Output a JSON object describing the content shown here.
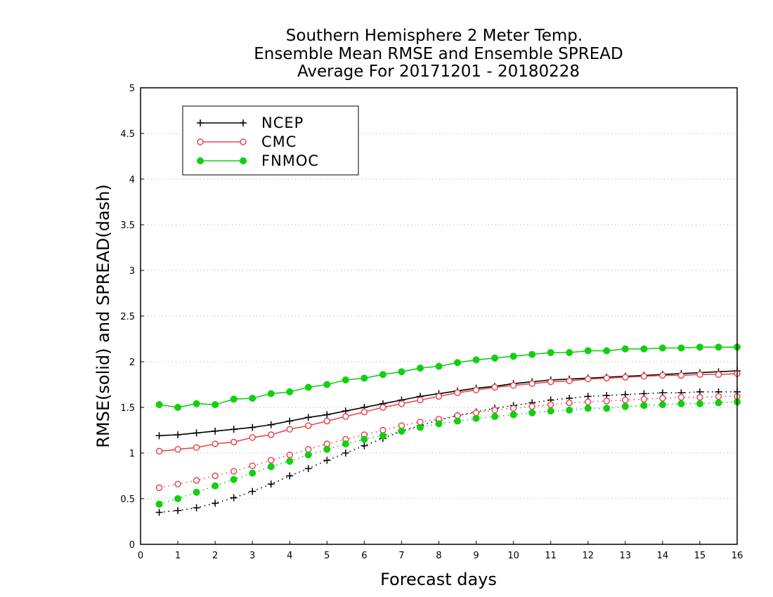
{
  "chart_data": {
    "type": "line",
    "title_lines": [
      "Southern Hemisphere 2 Meter Temp.",
      "Ensemble Mean RMSE and Ensemble SPREAD",
      "Average For 20171201 - 20180228"
    ],
    "xlabel": "Forecast days",
    "ylabel": "RMSE(solid) and SPREAD(dash)",
    "xlim": [
      0,
      16
    ],
    "ylim": [
      0,
      5
    ],
    "x_ticks": [
      "0",
      "1",
      "2",
      "3",
      "4",
      "5",
      "6",
      "7",
      "8",
      "9",
      "10",
      "11",
      "12",
      "13",
      "14",
      "15",
      "16"
    ],
    "y_ticks": [
      "0",
      "0.5",
      "1",
      "1.5",
      "2",
      "2.5",
      "3",
      "3.5",
      "4",
      "4.5",
      "5"
    ],
    "grid": "horizontal dotted",
    "legend_position": "top-left",
    "x": [
      0.5,
      1,
      1.5,
      2,
      2.5,
      3,
      3.5,
      4,
      4.5,
      5,
      5.5,
      6,
      6.5,
      7,
      7.5,
      8,
      8.5,
      9,
      9.5,
      10,
      10.5,
      11,
      11.5,
      12,
      12.5,
      13,
      13.5,
      14,
      14.5,
      15,
      15.5,
      16
    ],
    "series": [
      {
        "name": "NCEP",
        "color": "#000000",
        "marker": "plus",
        "rmse": [
          1.19,
          1.2,
          1.22,
          1.24,
          1.26,
          1.28,
          1.31,
          1.35,
          1.39,
          1.42,
          1.46,
          1.5,
          1.54,
          1.58,
          1.62,
          1.65,
          1.68,
          1.71,
          1.73,
          1.76,
          1.78,
          1.8,
          1.81,
          1.82,
          1.83,
          1.84,
          1.85,
          1.86,
          1.87,
          1.88,
          1.89,
          1.9
        ],
        "spread": [
          0.35,
          0.37,
          0.4,
          0.45,
          0.51,
          0.58,
          0.66,
          0.75,
          0.83,
          0.92,
          1.0,
          1.08,
          1.16,
          1.24,
          1.3,
          1.36,
          1.41,
          1.45,
          1.49,
          1.52,
          1.55,
          1.58,
          1.6,
          1.62,
          1.63,
          1.64,
          1.65,
          1.66,
          1.66,
          1.67,
          1.67,
          1.67
        ]
      },
      {
        "name": "CMC",
        "color": "#e8474f",
        "marker": "open-circle",
        "rmse": [
          1.02,
          1.04,
          1.06,
          1.1,
          1.12,
          1.17,
          1.2,
          1.26,
          1.3,
          1.35,
          1.4,
          1.45,
          1.5,
          1.54,
          1.58,
          1.62,
          1.66,
          1.69,
          1.72,
          1.74,
          1.76,
          1.78,
          1.79,
          1.81,
          1.82,
          1.83,
          1.84,
          1.85,
          1.85,
          1.86,
          1.86,
          1.87
        ],
        "spread": [
          0.62,
          0.66,
          0.7,
          0.75,
          0.8,
          0.86,
          0.92,
          0.98,
          1.04,
          1.1,
          1.15,
          1.2,
          1.25,
          1.3,
          1.34,
          1.37,
          1.41,
          1.44,
          1.47,
          1.49,
          1.51,
          1.53,
          1.55,
          1.56,
          1.57,
          1.58,
          1.59,
          1.6,
          1.61,
          1.61,
          1.62,
          1.62
        ]
      },
      {
        "name": "FNMOC",
        "color": "#10d010",
        "marker": "filled-circle",
        "rmse": [
          1.53,
          1.5,
          1.54,
          1.53,
          1.59,
          1.6,
          1.65,
          1.67,
          1.72,
          1.75,
          1.8,
          1.82,
          1.86,
          1.89,
          1.93,
          1.95,
          1.99,
          2.02,
          2.04,
          2.06,
          2.08,
          2.1,
          2.1,
          2.12,
          2.12,
          2.14,
          2.14,
          2.15,
          2.15,
          2.16,
          2.16,
          2.16
        ],
        "spread": [
          0.44,
          0.5,
          0.57,
          0.64,
          0.71,
          0.78,
          0.85,
          0.91,
          0.98,
          1.04,
          1.1,
          1.15,
          1.19,
          1.24,
          1.28,
          1.32,
          1.35,
          1.38,
          1.4,
          1.42,
          1.44,
          1.46,
          1.47,
          1.49,
          1.49,
          1.51,
          1.52,
          1.53,
          1.54,
          1.54,
          1.55,
          1.56
        ]
      }
    ]
  }
}
